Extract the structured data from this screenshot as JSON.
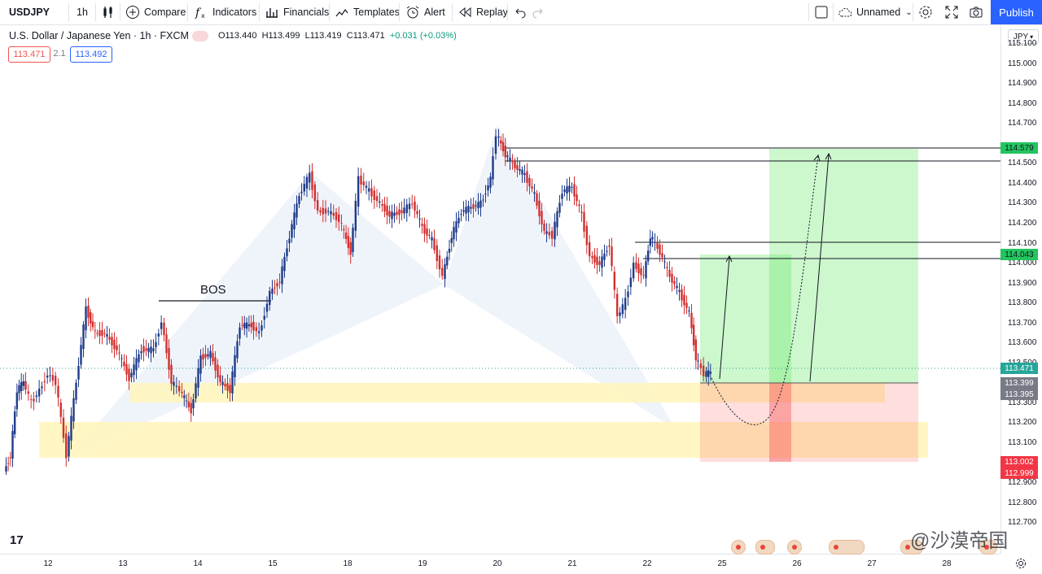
{
  "toolbar": {
    "symbol": "USDJPY",
    "interval": "1h",
    "compare": "Compare",
    "indicators": "Indicators",
    "financials": "Financials",
    "templates": "Templates",
    "alert": "Alert",
    "replay": "Replay",
    "layout_name": "Unnamed",
    "publish": "Publish"
  },
  "legend": {
    "title": "U.S. Dollar / Japanese Yen · 1h · FXCM",
    "open": "O113.440",
    "high": "H113.499",
    "low": "L113.419",
    "close": "C113.471",
    "change": "+0.031 (+0.03%)",
    "bid": "113.471",
    "spread": "2.1",
    "ask": "113.492"
  },
  "currency": "JPY",
  "annotation_bos": "BOS",
  "price_axis": {
    "ticks": [
      "115.100",
      "115.000",
      "114.900",
      "114.800",
      "114.700",
      "114.500",
      "114.400",
      "114.300",
      "114.200",
      "114.100",
      "114.000",
      "113.900",
      "113.800",
      "113.700",
      "113.600",
      "113.500",
      "113.300",
      "113.200",
      "113.100",
      "112.900",
      "112.800",
      "112.700"
    ],
    "labels": [
      {
        "text": "114.579",
        "kind": "green"
      },
      {
        "text": "114.043",
        "kind": "green"
      },
      {
        "text": "113.471",
        "kind": "price"
      },
      {
        "text": "113.399",
        "kind": "gray"
      },
      {
        "text": "113.395",
        "kind": "gray"
      },
      {
        "text": "113.002",
        "kind": "red"
      },
      {
        "text": "112.999",
        "kind": "red"
      }
    ]
  },
  "time_axis": {
    "ticks": [
      "12",
      "13",
      "14",
      "15",
      "18",
      "19",
      "20",
      "21",
      "22",
      "25",
      "26",
      "27",
      "28"
    ]
  },
  "watermark": "@沙漠帝国",
  "colors": {
    "up": "#26a69a",
    "down": "#ef5350",
    "candle_up": "#1e3a8a",
    "candle_down": "#d32f2f",
    "accent": "#2962ff",
    "target_green": "#22c55e",
    "stop_red": "#ef4444"
  }
}
